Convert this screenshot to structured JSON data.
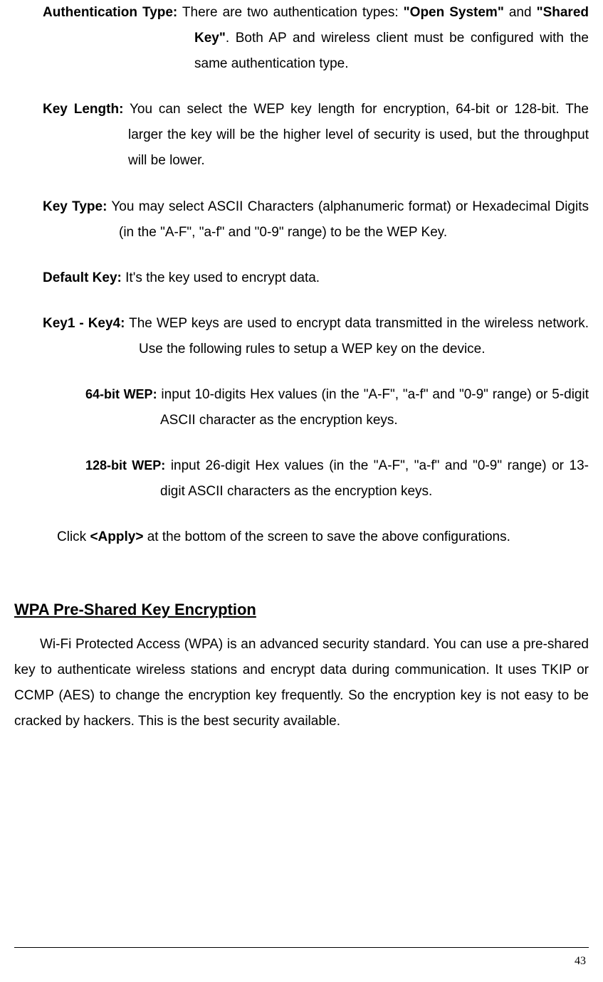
{
  "defs": {
    "auth_type": {
      "label": "Authentication Type:",
      "pre": " There are two authentication types: ",
      "bold1": "\"Open System\"",
      "mid": " and ",
      "bold2": "\"Shared Key\"",
      "post": ". Both AP and wireless client must be configured with the same authentication type."
    },
    "key_length": {
      "label": "Key Length:",
      "body": " You can select the WEP key length for encryption, 64-bit or 128-bit. The larger the key will be the higher level of security is used, but the throughput will be lower."
    },
    "key_type": {
      "label": "Key Type:",
      "body": " You may select ASCII Characters (alphanumeric format) or Hexadecimal Digits (in the \"A-F\", \"a-f\" and \"0-9\" range) to be the WEP Key."
    },
    "default_key": {
      "label": "Default Key:",
      "body": " It's the key used to encrypt data."
    },
    "key1_4": {
      "label": "Key1 - Key4:",
      "body": " The WEP keys are used to encrypt data transmitted in the wireless network. Use the following rules to setup a WEP key on the device."
    },
    "wep64": {
      "label": "64-bit WEP:",
      "body": " input 10-digits Hex values (in the \"A-F\", \"a-f\" and \"0-9\" range) or 5-digit ASCII character as the encryption keys."
    },
    "wep128": {
      "label": "128-bit WEP:",
      "body": " input 26-digit Hex values (in the \"A-F\", \"a-f\" and \"0-9\" range) or 13-digit ASCII characters as the encryption keys."
    }
  },
  "apply": {
    "pre": "Click ",
    "bold": "<Apply>",
    "post": " at the bottom of the screen to save the above configurations."
  },
  "section": {
    "heading": "WPA Pre-Shared Key Encryption",
    "para": "Wi-Fi Protected Access (WPA) is an advanced security standard. You can use a pre-shared key to authenticate wireless stations and encrypt data during communication. It uses TKIP or CCMP (AES) to change the encryption key frequently. So the encryption key is not easy to be cracked by hackers. This is the best security available."
  },
  "page_number": "43"
}
